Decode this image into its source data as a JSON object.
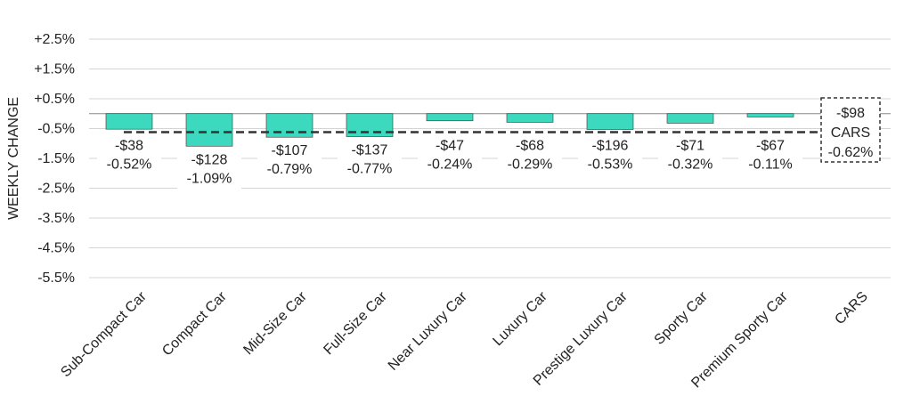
{
  "chart_data": {
    "type": "bar",
    "ylabel": "WEEKLY CHANGE",
    "yticks": [
      "+2.5%",
      "+1.5%",
      "+0.5%",
      "-0.5%",
      "-1.5%",
      "-2.5%",
      "-3.5%",
      "-4.5%",
      "-5.5%"
    ],
    "ylim": [
      -5.5,
      2.5
    ],
    "grid": true,
    "categories": [
      "Sub-Compact Car",
      "Compact Car",
      "Mid-Size Car",
      "Full-Size Car",
      "Near Luxury Car",
      "Luxury Car",
      "Prestige Luxury Car",
      "Sporty Car",
      "Premium Sporty Car",
      "CARS"
    ],
    "values": [
      -0.52,
      -1.09,
      -0.79,
      -0.77,
      -0.24,
      -0.29,
      -0.53,
      -0.32,
      -0.11,
      -0.62
    ],
    "dollar_labels": [
      "-$38",
      "-$128",
      "-$107",
      "-$137",
      "-$47",
      "-$68",
      "-$196",
      "-$71",
      "-$67",
      "-$98"
    ],
    "percent_labels": [
      "-0.52%",
      "-1.09%",
      "-0.79%",
      "-0.77%",
      "-0.24%",
      "-0.29%",
      "-0.53%",
      "-0.32%",
      "-0.11%",
      "-0.62%"
    ],
    "total_label": "CARS",
    "reference_line_value": -0.62,
    "bar_color": "#3dd9bf",
    "bar_edge_color": "#333333",
    "grid_color": "#d4d4d4"
  }
}
